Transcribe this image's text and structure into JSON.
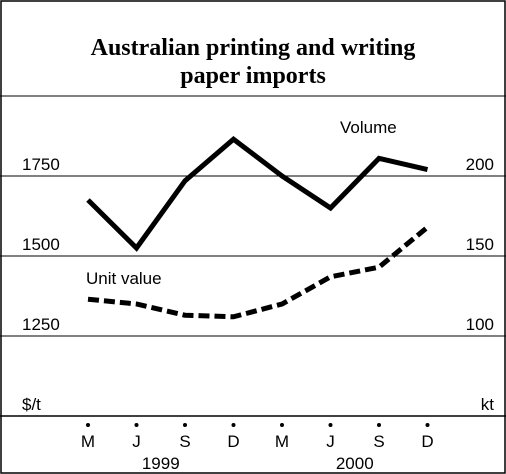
{
  "chart_data": {
    "type": "line",
    "title_lines": [
      "Australian printing and writing",
      "paper imports"
    ],
    "categories": [
      "M",
      "J",
      "S",
      "D",
      "M",
      "J",
      "S",
      "D"
    ],
    "year_labels": [
      "1999",
      "2000"
    ],
    "left_axis": {
      "unit": "$/t",
      "ticks": [
        "1750",
        "1500",
        "1250"
      ],
      "ylim": [
        1000,
        2000
      ]
    },
    "right_axis": {
      "unit": "kt",
      "ticks": [
        "200",
        "150",
        "100"
      ],
      "ylim": [
        50,
        250
      ]
    },
    "grid": true,
    "series": [
      {
        "name": "Volume",
        "axis": "right",
        "style": "solid",
        "values": [
          185,
          155,
          197,
          223,
          200,
          180,
          211,
          204
        ]
      },
      {
        "name": "Unit value",
        "axis": "left",
        "style": "dashed",
        "values": [
          1365,
          1350,
          1315,
          1310,
          1350,
          1435,
          1465,
          1590
        ]
      }
    ]
  },
  "colors": {
    "line": "#000000",
    "grid": "#000000",
    "background": "#ffffff"
  }
}
